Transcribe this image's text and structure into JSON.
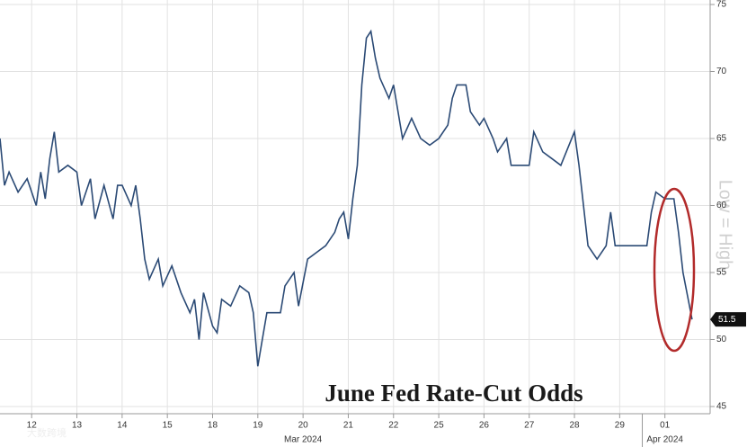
{
  "chart_data": {
    "type": "line",
    "title": "June Fed Rate-Cut Odds",
    "annotation": "Low = High",
    "watermark": "大数跨境",
    "last_value": 51.5,
    "xlim": [
      -0.7,
      15
    ],
    "xticks": [
      {
        "value": 0,
        "label": "12"
      },
      {
        "value": 1,
        "label": "13"
      },
      {
        "value": 2,
        "label": "14"
      },
      {
        "value": 3,
        "label": "15"
      },
      {
        "value": 4,
        "label": "18"
      },
      {
        "value": 5,
        "label": "19"
      },
      {
        "value": 6,
        "label": "20"
      },
      {
        "value": 7,
        "label": "21"
      },
      {
        "value": 8,
        "label": "22"
      },
      {
        "value": 9,
        "label": "25"
      },
      {
        "value": 10,
        "label": "26"
      },
      {
        "value": 11,
        "label": "27"
      },
      {
        "value": 12,
        "label": "28"
      },
      {
        "value": 13,
        "label": "29"
      },
      {
        "value": 14,
        "label": "01"
      }
    ],
    "month_labels": [
      {
        "value": 6,
        "label": "Mar 2024"
      },
      {
        "value": 14,
        "label": "Apr 2024"
      }
    ],
    "ylim": [
      45,
      75
    ],
    "yticks": [
      45,
      50,
      55,
      60,
      65,
      70,
      75
    ],
    "grid": true,
    "series": [
      {
        "color": "#2b4a75",
        "x": [
          -0.7,
          -0.6,
          -0.5,
          -0.3,
          -0.1,
          0.1,
          0.2,
          0.3,
          0.4,
          0.5,
          0.6,
          0.8,
          1.0,
          1.1,
          1.3,
          1.4,
          1.6,
          1.8,
          1.9,
          2.0,
          2.2,
          2.3,
          2.4,
          2.5,
          2.6,
          2.8,
          2.9,
          3.1,
          3.3,
          3.5,
          3.6,
          3.7,
          3.8,
          4.0,
          4.1,
          4.2,
          4.4,
          4.6,
          4.8,
          4.9,
          5.0,
          5.1,
          5.2,
          5.5,
          5.6,
          5.8,
          5.9,
          6.1,
          6.3,
          6.5,
          6.7,
          6.8,
          6.9,
          7.0,
          7.1,
          7.2,
          7.3,
          7.4,
          7.5,
          7.6,
          7.7,
          7.9,
          8.0,
          8.1,
          8.2,
          8.4,
          8.6,
          8.8,
          9.0,
          9.2,
          9.3,
          9.4,
          9.6,
          9.7,
          9.9,
          10.0,
          10.2,
          10.3,
          10.5,
          10.6,
          11.0,
          11.1,
          11.3,
          11.5,
          11.7,
          12.0,
          12.1,
          12.2,
          12.3,
          12.5,
          12.7,
          12.8,
          12.9,
          13.1,
          13.6,
          13.7,
          13.8,
          14.0,
          14.2,
          14.3,
          14.4,
          14.6
        ],
        "values": [
          65,
          61.5,
          62.5,
          61,
          62,
          60,
          62.5,
          60.5,
          63.5,
          65.5,
          62.5,
          63,
          62.5,
          60,
          62,
          59,
          61.5,
          59,
          61.5,
          61.5,
          60,
          61.5,
          59,
          56,
          54.5,
          56,
          54,
          55.5,
          53.5,
          52,
          53,
          50,
          53.5,
          51,
          50.5,
          53,
          52.5,
          54,
          53.5,
          52,
          48,
          50,
          52,
          52,
          54,
          55,
          52.5,
          56,
          56.5,
          57,
          58,
          59,
          59.5,
          57.5,
          60.5,
          63,
          69,
          72.5,
          73,
          71,
          69.5,
          68,
          69,
          67,
          65,
          66.5,
          65,
          64.5,
          65,
          66,
          68,
          69,
          69,
          67,
          66,
          66.5,
          65,
          64,
          65,
          63,
          63,
          65.5,
          64,
          63.5,
          63,
          65.5,
          63,
          60,
          57,
          56,
          57,
          59.5,
          57,
          57,
          57,
          59.5,
          61,
          60.5,
          60.5,
          58,
          55,
          51.5
        ]
      }
    ]
  }
}
